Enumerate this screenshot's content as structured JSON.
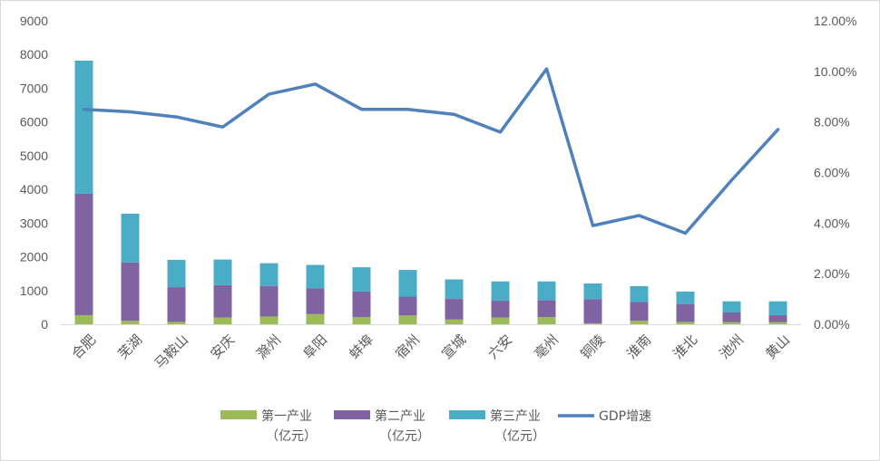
{
  "chart_data": {
    "type": "bar",
    "stacked": true,
    "categories": [
      "合肥",
      "芜湖",
      "马鞍山",
      "安庆",
      "滁州",
      "阜阳",
      "蚌埠",
      "宿州",
      "宣城",
      "六安",
      "亳州",
      "铜陵",
      "淮南",
      "淮北",
      "池州",
      "黄山"
    ],
    "series": [
      {
        "name": "第一产业（亿元）",
        "name_lines": [
          "第一产业",
          "（亿元）"
        ],
        "color": "#9bbb59",
        "axis": "left",
        "kind": "bar",
        "values": [
          270,
          100,
          70,
          200,
          230,
          300,
          210,
          260,
          140,
          200,
          210,
          30,
          100,
          70,
          60,
          60
        ]
      },
      {
        "name": "第二产业（亿元）",
        "name_lines": [
          "第二产业",
          "（亿元）"
        ],
        "color": "#8064a2",
        "axis": "left",
        "kind": "bar",
        "values": [
          3600,
          1730,
          1030,
          960,
          900,
          760,
          760,
          560,
          610,
          500,
          500,
          710,
          560,
          530,
          290,
          210
        ]
      },
      {
        "name": "第三产业（亿元）",
        "name_lines": [
          "第三产业",
          "（亿元）"
        ],
        "color": "#4bacc6",
        "axis": "left",
        "kind": "bar",
        "values": [
          3950,
          1450,
          810,
          760,
          680,
          700,
          720,
          790,
          580,
          570,
          560,
          470,
          470,
          370,
          330,
          410
        ]
      },
      {
        "name": "GDP增速",
        "name_lines": [
          "GDP增速"
        ],
        "color": "#4f81bd",
        "axis": "right",
        "kind": "line",
        "values": [
          8.5,
          8.4,
          8.2,
          7.8,
          9.1,
          9.5,
          8.5,
          8.5,
          8.3,
          7.6,
          10.1,
          3.9,
          4.3,
          3.6,
          5.7,
          7.7
        ]
      }
    ],
    "y_left": {
      "min": 0,
      "max": 9000,
      "step": 1000,
      "ticks": [
        "0",
        "1000",
        "2000",
        "3000",
        "4000",
        "5000",
        "6000",
        "7000",
        "8000",
        "9000"
      ]
    },
    "y_right": {
      "min": 0,
      "max": 12,
      "step": 2,
      "ticks": [
        "0.00%",
        "2.00%",
        "4.00%",
        "6.00%",
        "8.00%",
        "10.00%",
        "12.00%"
      ]
    },
    "grid": false,
    "legend_position": "bottom"
  }
}
